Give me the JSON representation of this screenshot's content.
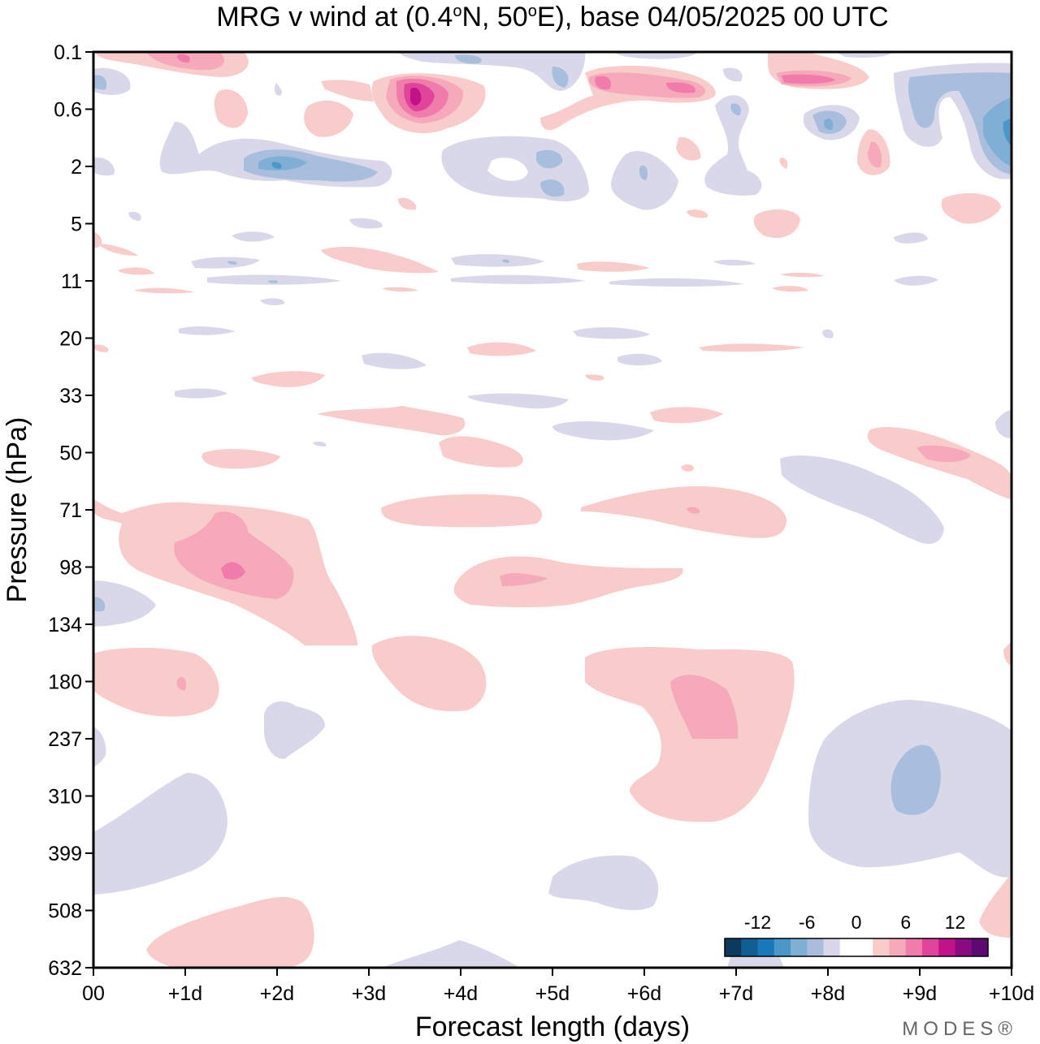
{
  "chart_data": {
    "type": "heatmap",
    "title": "MRG v wind at (0.4°N, 50°E),  base 04/05/2025  00 UTC",
    "title_display": {
      "part1": "MRG v wind at (0.4",
      "sup1": "o",
      "part2": "N, 50",
      "sup2": "o",
      "part3": "E),  base 04/05/2025  00 UTC"
    },
    "xlabel": "Forecast length (days)",
    "ylabel": "Pressure (hPa)",
    "x_ticks": [
      "00",
      "+1d",
      "+2d",
      "+3d",
      "+4d",
      "+5d",
      "+6d",
      "+7d",
      "+8d",
      "+9d",
      "+10d"
    ],
    "y_ticks": [
      "0.1",
      "0.6",
      "2",
      "5",
      "11",
      "20",
      "33",
      "50",
      "71",
      "98",
      "134",
      "180",
      "237",
      "310",
      "399",
      "508",
      "632"
    ],
    "x_range": [
      0,
      10
    ],
    "colorbar": {
      "tick_labels": [
        "-12",
        "-6",
        "0",
        "6",
        "12"
      ],
      "colors": [
        "#0d3a5c",
        "#0f5f94",
        "#1878b8",
        "#4a97c8",
        "#80afd6",
        "#a9bddd",
        "#d8d8ea",
        "#ffffff",
        "#ffffff",
        "#f9cccc",
        "#f5a9ba",
        "#f07cab",
        "#e0449b",
        "#c21287",
        "#8a0a7f",
        "#5c0a72"
      ]
    },
    "data_summary": "Meridional wind (MRG component) anomalies in m/s by forecast day (x) and pressure level (y); blue = negative, pink = positive",
    "features": [
      {
        "day": 3.5,
        "hPa": 0.4,
        "value": 13
      },
      {
        "day": 1.5,
        "hPa": 98,
        "value": 7
      },
      {
        "day": 3.6,
        "hPa": 90,
        "value": 3
      },
      {
        "day": 6.5,
        "hPa": 210,
        "value": 5
      },
      {
        "day": 9.1,
        "hPa": 290,
        "value": -4
      },
      {
        "day": 10.0,
        "hPa": 1.6,
        "value": -6
      },
      {
        "day": 2.0,
        "hPa": 2.0,
        "value": -6
      },
      {
        "day": 8.5,
        "hPa": 1.7,
        "value": 5
      },
      {
        "day": 7.6,
        "hPa": 0.2,
        "value": 6
      },
      {
        "day": 5.6,
        "hPa": 0.2,
        "value": 5
      },
      {
        "day": 9.5,
        "hPa": 50,
        "value": 4
      },
      {
        "day": 0.1,
        "hPa": 400,
        "value": -1
      },
      {
        "day": 1.4,
        "hPa": 580,
        "value": 2
      }
    ]
  },
  "watermark": "MODES®"
}
